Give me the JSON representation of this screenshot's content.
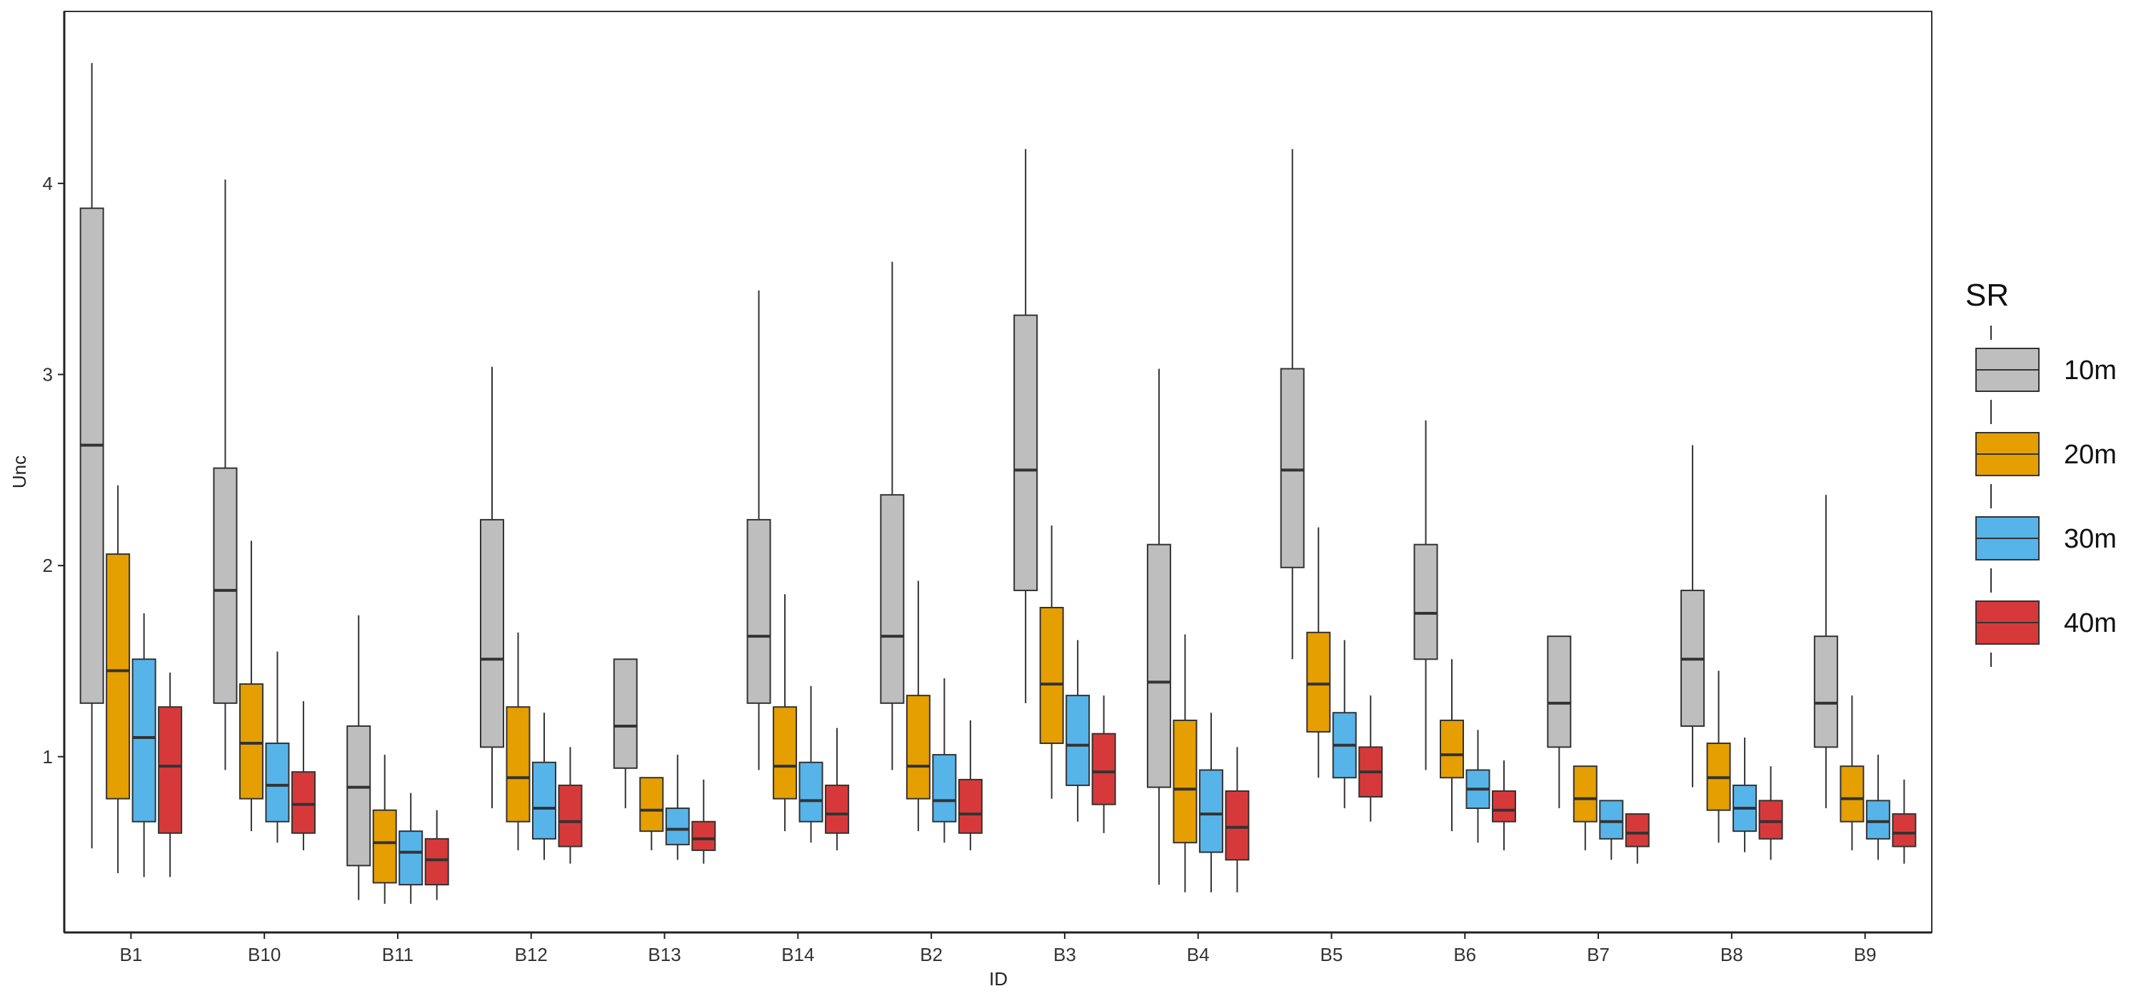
{
  "chart_data": {
    "type": "boxplot",
    "xlabel": "ID",
    "ylabel": "Unc",
    "ylim": [
      0.08,
      4.9
    ],
    "yticks": [
      "1",
      "2",
      "3",
      "4"
    ],
    "grid": false,
    "legend": {
      "title": "SR",
      "placement": "right",
      "entries": [
        {
          "label": "10m",
          "color": "#bebebe"
        },
        {
          "label": "20m",
          "color": "#e69f00"
        },
        {
          "label": "30m",
          "color": "#56b4e9"
        },
        {
          "label": "40m",
          "color": "#d7393a"
        }
      ]
    },
    "categories": [
      "B1",
      "B10",
      "B11",
      "B12",
      "B13",
      "B14",
      "B2",
      "B3",
      "B4",
      "B5",
      "B6",
      "B7",
      "B8",
      "B9"
    ],
    "series": [
      {
        "name": "10m",
        "color": "#bebebe",
        "boxes": [
          {
            "min": 0.52,
            "q1": 1.28,
            "median": 2.63,
            "q3": 3.87,
            "max": 4.63
          },
          {
            "min": 0.93,
            "q1": 1.28,
            "median": 1.87,
            "q3": 2.51,
            "max": 4.02
          },
          {
            "min": 0.25,
            "q1": 0.43,
            "median": 0.84,
            "q3": 1.16,
            "max": 1.74
          },
          {
            "min": 0.73,
            "q1": 1.05,
            "median": 1.51,
            "q3": 2.24,
            "max": 3.04
          },
          {
            "min": 0.73,
            "q1": 0.94,
            "median": 1.16,
            "q3": 1.51,
            "max": 1.51
          },
          {
            "min": 0.93,
            "q1": 1.28,
            "median": 1.63,
            "q3": 2.24,
            "max": 3.44
          },
          {
            "min": 0.93,
            "q1": 1.28,
            "median": 1.63,
            "q3": 2.37,
            "max": 3.59
          },
          {
            "min": 1.28,
            "q1": 1.87,
            "median": 2.5,
            "q3": 3.31,
            "max": 4.18
          },
          {
            "min": 0.33,
            "q1": 0.84,
            "median": 1.39,
            "q3": 2.11,
            "max": 3.03
          },
          {
            "min": 1.51,
            "q1": 1.99,
            "median": 2.5,
            "q3": 3.03,
            "max": 4.18
          },
          {
            "min": 0.93,
            "q1": 1.51,
            "median": 1.75,
            "q3": 2.11,
            "max": 2.76
          },
          {
            "min": 0.73,
            "q1": 1.05,
            "median": 1.28,
            "q3": 1.63,
            "max": 1.63
          },
          {
            "min": 0.84,
            "q1": 1.16,
            "median": 1.51,
            "q3": 1.87,
            "max": 2.63
          },
          {
            "min": 0.73,
            "q1": 1.05,
            "median": 1.28,
            "q3": 1.63,
            "max": 2.37
          }
        ]
      },
      {
        "name": "20m",
        "color": "#e69f00",
        "boxes": [
          {
            "min": 0.39,
            "q1": 0.78,
            "median": 1.45,
            "q3": 2.06,
            "max": 2.42
          },
          {
            "min": 0.61,
            "q1": 0.78,
            "median": 1.07,
            "q3": 1.38,
            "max": 2.13
          },
          {
            "min": 0.23,
            "q1": 0.34,
            "median": 0.55,
            "q3": 0.72,
            "max": 1.01
          },
          {
            "min": 0.51,
            "q1": 0.66,
            "median": 0.89,
            "q3": 1.26,
            "max": 1.65
          },
          {
            "min": 0.51,
            "q1": 0.61,
            "median": 0.72,
            "q3": 0.89,
            "max": 0.89
          },
          {
            "min": 0.61,
            "q1": 0.78,
            "median": 0.95,
            "q3": 1.26,
            "max": 1.85
          },
          {
            "min": 0.61,
            "q1": 0.78,
            "median": 0.95,
            "q3": 1.32,
            "max": 1.92
          },
          {
            "min": 0.78,
            "q1": 1.07,
            "median": 1.38,
            "q3": 1.78,
            "max": 2.21
          },
          {
            "min": 0.29,
            "q1": 0.55,
            "median": 0.83,
            "q3": 1.19,
            "max": 1.64
          },
          {
            "min": 0.89,
            "q1": 1.13,
            "median": 1.38,
            "q3": 1.65,
            "max": 2.2
          },
          {
            "min": 0.61,
            "q1": 0.89,
            "median": 1.01,
            "q3": 1.19,
            "max": 1.51
          },
          {
            "min": 0.51,
            "q1": 0.66,
            "median": 0.78,
            "q3": 0.95,
            "max": 0.95
          },
          {
            "min": 0.55,
            "q1": 0.72,
            "median": 0.89,
            "q3": 1.07,
            "max": 1.45
          },
          {
            "min": 0.51,
            "q1": 0.66,
            "median": 0.78,
            "q3": 0.95,
            "max": 1.32
          }
        ]
      },
      {
        "name": "30m",
        "color": "#56b4e9",
        "boxes": [
          {
            "min": 0.37,
            "q1": 0.66,
            "median": 1.1,
            "q3": 1.51,
            "max": 1.75
          },
          {
            "min": 0.55,
            "q1": 0.66,
            "median": 0.85,
            "q3": 1.07,
            "max": 1.55
          },
          {
            "min": 0.23,
            "q1": 0.33,
            "median": 0.5,
            "q3": 0.61,
            "max": 0.81
          },
          {
            "min": 0.46,
            "q1": 0.57,
            "median": 0.73,
            "q3": 0.97,
            "max": 1.23
          },
          {
            "min": 0.46,
            "q1": 0.54,
            "median": 0.62,
            "q3": 0.73,
            "max": 1.01
          },
          {
            "min": 0.55,
            "q1": 0.66,
            "median": 0.77,
            "q3": 0.97,
            "max": 1.37
          },
          {
            "min": 0.55,
            "q1": 0.66,
            "median": 0.77,
            "q3": 1.01,
            "max": 1.41
          },
          {
            "min": 0.66,
            "q1": 0.85,
            "median": 1.06,
            "q3": 1.32,
            "max": 1.61
          },
          {
            "min": 0.29,
            "q1": 0.5,
            "median": 0.7,
            "q3": 0.93,
            "max": 1.23
          },
          {
            "min": 0.73,
            "q1": 0.89,
            "median": 1.06,
            "q3": 1.23,
            "max": 1.61
          },
          {
            "min": 0.55,
            "q1": 0.73,
            "median": 0.83,
            "q3": 0.93,
            "max": 1.14
          },
          {
            "min": 0.46,
            "q1": 0.57,
            "median": 0.66,
            "q3": 0.77,
            "max": 0.77
          },
          {
            "min": 0.5,
            "q1": 0.61,
            "median": 0.73,
            "q3": 0.85,
            "max": 1.1
          },
          {
            "min": 0.46,
            "q1": 0.57,
            "median": 0.66,
            "q3": 0.77,
            "max": 1.01
          }
        ]
      },
      {
        "name": "40m",
        "color": "#d7393a",
        "boxes": [
          {
            "min": 0.37,
            "q1": 0.6,
            "median": 0.95,
            "q3": 1.26,
            "max": 1.44
          },
          {
            "min": 0.51,
            "q1": 0.6,
            "median": 0.75,
            "q3": 0.92,
            "max": 1.29
          },
          {
            "min": 0.25,
            "q1": 0.33,
            "median": 0.46,
            "q3": 0.57,
            "max": 0.72
          },
          {
            "min": 0.44,
            "q1": 0.53,
            "median": 0.66,
            "q3": 0.85,
            "max": 1.05
          },
          {
            "min": 0.44,
            "q1": 0.51,
            "median": 0.57,
            "q3": 0.66,
            "max": 0.88
          },
          {
            "min": 0.51,
            "q1": 0.6,
            "median": 0.7,
            "q3": 0.85,
            "max": 1.15
          },
          {
            "min": 0.51,
            "q1": 0.6,
            "median": 0.7,
            "q3": 0.88,
            "max": 1.19
          },
          {
            "min": 0.6,
            "q1": 0.75,
            "median": 0.92,
            "q3": 1.12,
            "max": 1.32
          },
          {
            "min": 0.29,
            "q1": 0.46,
            "median": 0.63,
            "q3": 0.82,
            "max": 1.05
          },
          {
            "min": 0.66,
            "q1": 0.79,
            "median": 0.92,
            "q3": 1.05,
            "max": 1.32
          },
          {
            "min": 0.51,
            "q1": 0.66,
            "median": 0.72,
            "q3": 0.82,
            "max": 0.98
          },
          {
            "min": 0.44,
            "q1": 0.53,
            "median": 0.6,
            "q3": 0.7,
            "max": 0.7
          },
          {
            "min": 0.46,
            "q1": 0.57,
            "median": 0.66,
            "q3": 0.77,
            "max": 0.95
          },
          {
            "min": 0.44,
            "q1": 0.53,
            "median": 0.6,
            "q3": 0.7,
            "max": 0.88
          }
        ]
      }
    ]
  }
}
